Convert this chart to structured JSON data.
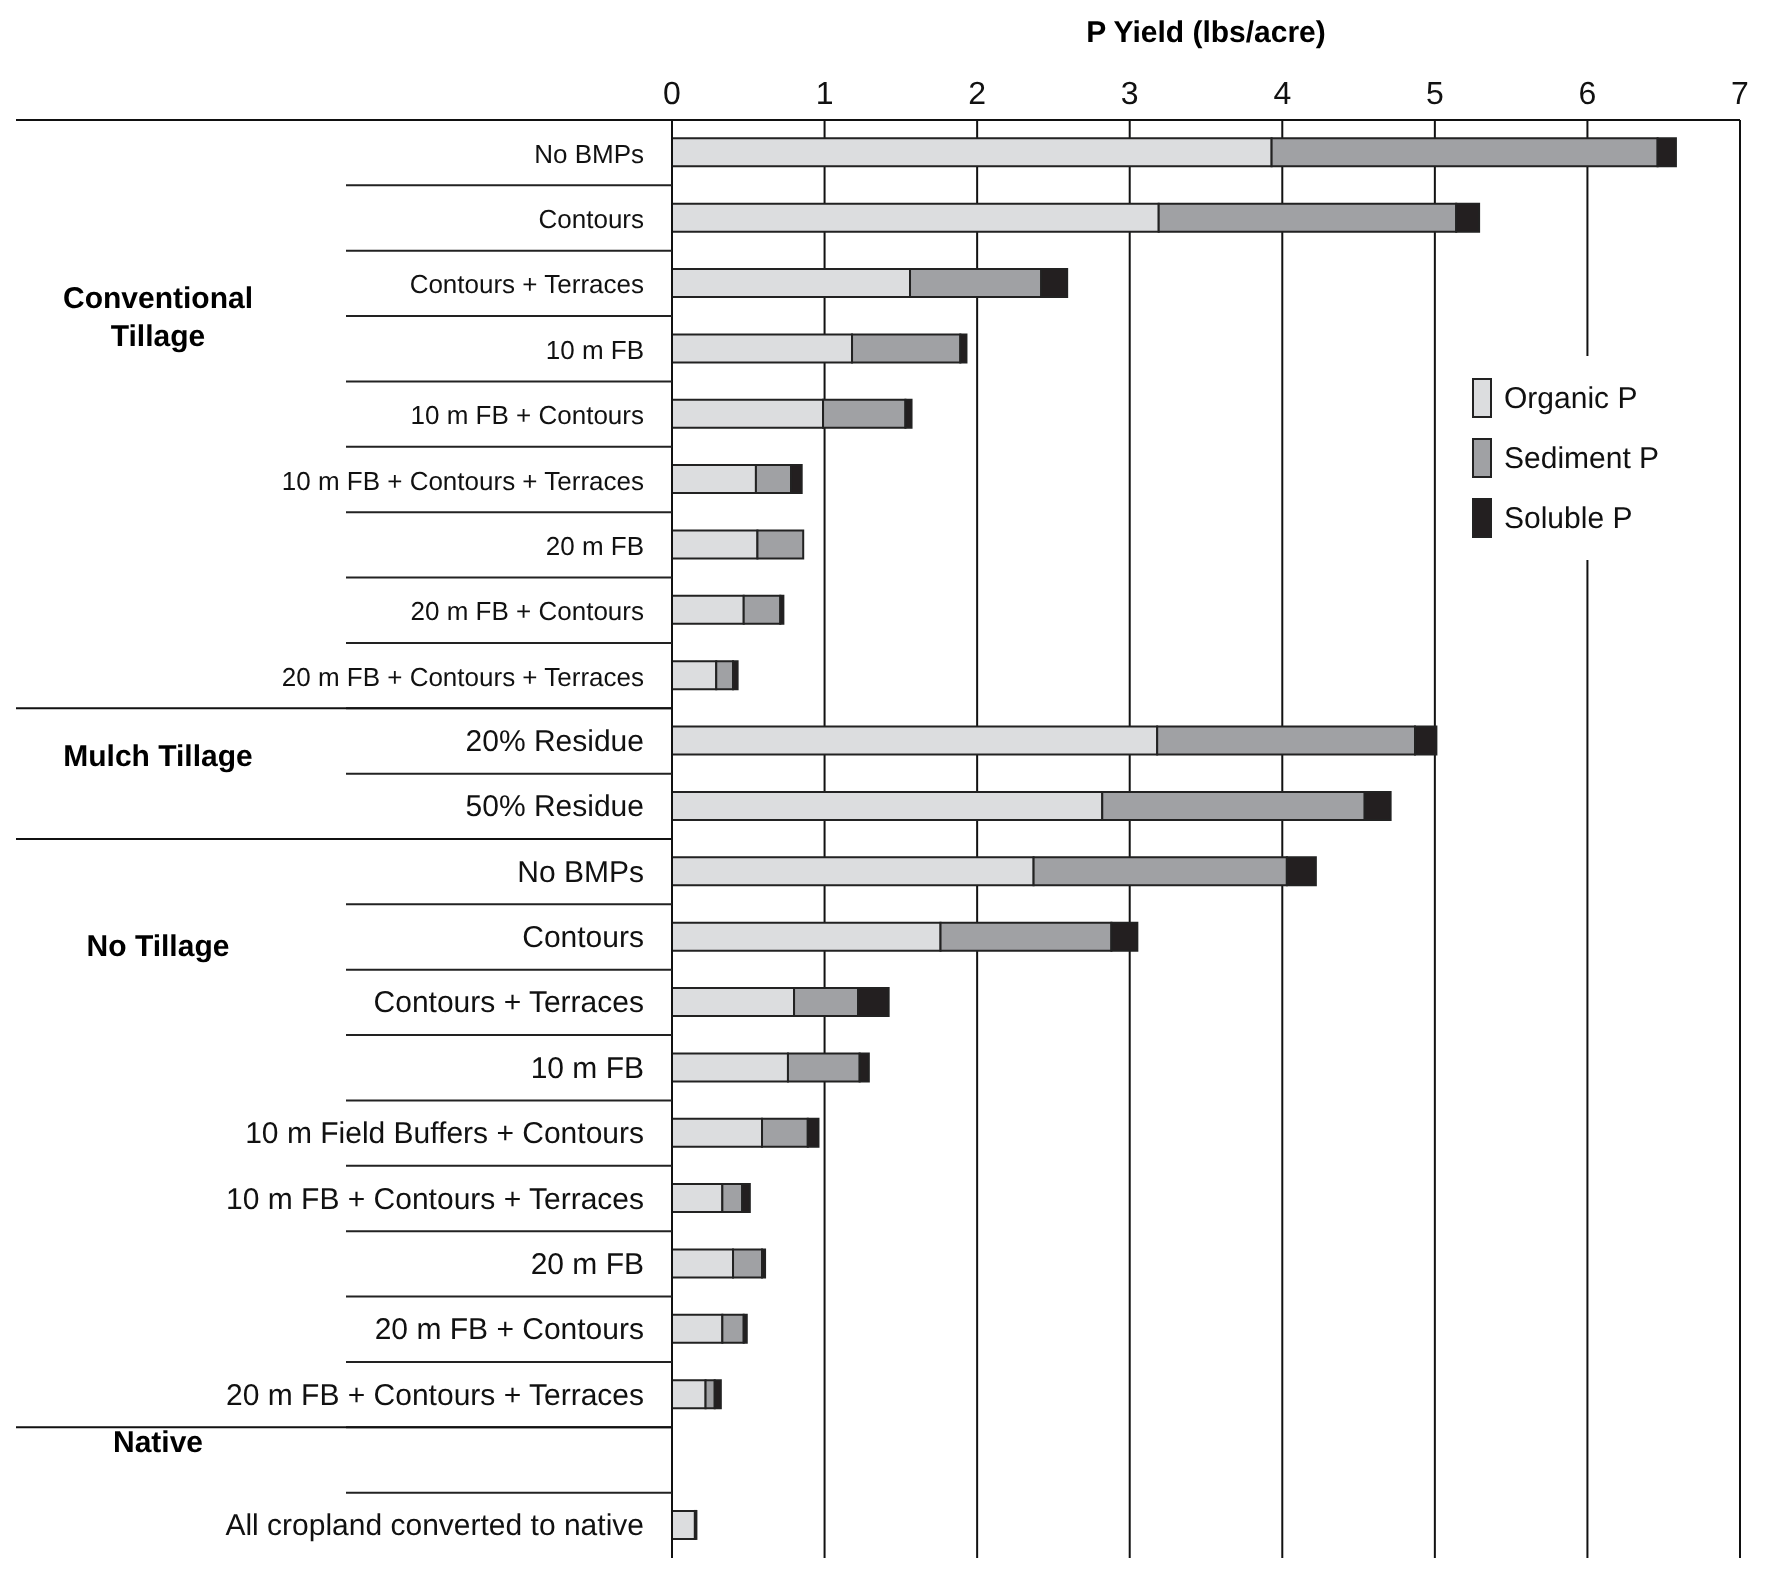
{
  "chart_data": {
    "type": "bar",
    "orientation": "horizontal",
    "stacked": true,
    "title": "P Yield (lbs/acre)",
    "categories": [
      "No BMPs",
      "Contours",
      "Contours + Terraces",
      "10 m FB",
      "10 m FB + Contours",
      "10 m FB + Contours + Terraces",
      "20 m FB",
      "20 m FB + Contours",
      "20 m FB + Contours + Terraces",
      "20% Residue",
      "50% Residue",
      "No BMPs",
      "Contours",
      "Contours + Terraces",
      "10 m FB",
      "10 m Field Buffers + Contours",
      "10 m FB + Contours + Terraces",
      "20 m  FB",
      "20 m FB + Contours",
      "20 m FB + Contours + Terraces",
      null,
      "All cropland converted to native"
    ],
    "series": [
      {
        "name": "Organic P",
        "color": "#dcdddf",
        "values": [
          3.93,
          3.19,
          1.56,
          1.18,
          0.99,
          0.55,
          0.56,
          0.47,
          0.29,
          3.18,
          2.82,
          2.37,
          1.76,
          0.8,
          0.76,
          0.59,
          0.33,
          0.4,
          0.33,
          0.22,
          null,
          0.15
        ]
      },
      {
        "name": "Sediment P",
        "color": "#a0a1a4",
        "values": [
          2.53,
          1.95,
          0.86,
          0.71,
          0.54,
          0.23,
          0.3,
          0.24,
          0.11,
          1.69,
          1.72,
          1.66,
          1.12,
          0.42,
          0.47,
          0.3,
          0.13,
          0.19,
          0.14,
          0.06,
          null,
          0
        ]
      },
      {
        "name": "Soluble P",
        "color": "#231f20",
        "values": [
          0.12,
          0.15,
          0.17,
          0.04,
          0.04,
          0.07,
          0,
          0.02,
          0.03,
          0.14,
          0.17,
          0.19,
          0.17,
          0.2,
          0.06,
          0.07,
          0.05,
          0.02,
          0.02,
          0.04,
          null,
          0.01
        ]
      }
    ],
    "xlim": [
      0,
      7
    ],
    "xticks": [
      0,
      1,
      2,
      3,
      4,
      5,
      6,
      7
    ],
    "grid": "x",
    "legend": "right",
    "annotations": [
      "Conventional Tillage",
      "Mulch Tillage",
      "No Tillage",
      "Native"
    ]
  }
}
